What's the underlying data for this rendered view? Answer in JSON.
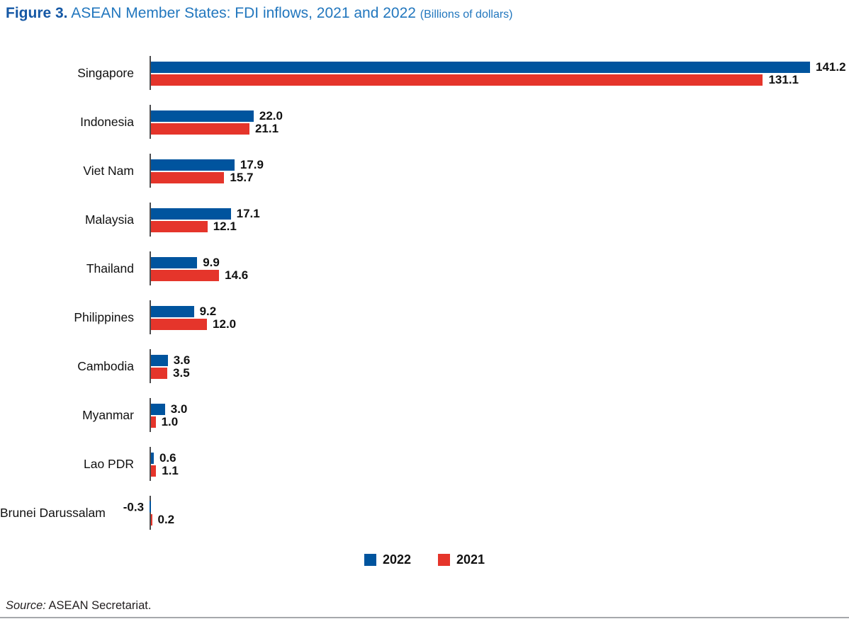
{
  "title": {
    "figure_label": "Figure 3.",
    "text": " ASEAN Member States: FDI inflows, 2021 and 2022 ",
    "unit_note": "(Billions of dollars)"
  },
  "legend": [
    {
      "label": "2022",
      "color": "#00549E"
    },
    {
      "label": "2021",
      "color": "#E5352B"
    }
  ],
  "source": {
    "prefix": "Source:",
    "text": " ASEAN Secretariat."
  },
  "colors": {
    "bar_2022": "#00549E",
    "bar_2021": "#E5352B",
    "axis_tick": "#4d4d4f",
    "title_figure_label": "#1558A5",
    "title_text": "#2277BE",
    "value_text": "#111111",
    "bottom_rule": "#a6a8ab"
  },
  "chart_data": {
    "type": "bar",
    "orientation": "horizontal",
    "title": "ASEAN Member States: FDI inflows, 2021 and 2022 (Billions of dollars)",
    "xlabel": "FDI inflows (Billions of dollars)",
    "ylabel": "",
    "xlim": [
      0,
      141.2
    ],
    "grid": false,
    "legend_position": "bottom",
    "value_labels_shown": true,
    "categories": [
      "Singapore",
      "Indonesia",
      "Viet Nam",
      "Malaysia",
      "Thailand",
      "Philippines",
      "Cambodia",
      "Myanmar",
      "Lao PDR",
      "Brunei Darussalam"
    ],
    "series": [
      {
        "name": "2022",
        "color": "#00549E",
        "values": [
          141.2,
          22.0,
          17.9,
          17.1,
          9.9,
          9.2,
          3.6,
          3.0,
          0.6,
          -0.3
        ]
      },
      {
        "name": "2021",
        "color": "#E5352B",
        "values": [
          131.1,
          21.1,
          15.7,
          12.1,
          14.6,
          12.0,
          3.5,
          1.0,
          1.1,
          0.2
        ]
      }
    ]
  }
}
